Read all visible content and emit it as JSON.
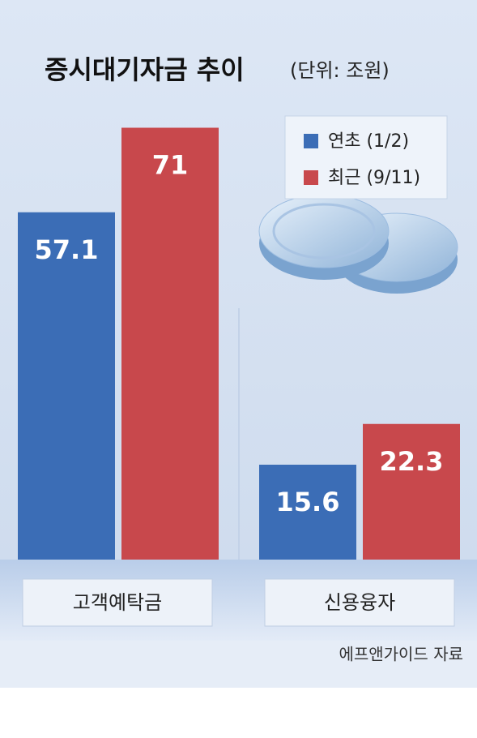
{
  "chart_data": {
    "type": "bar",
    "title": "증시대기자금 추이",
    "subtitle": "(단위: 조원)",
    "categories": [
      "고객예탁금",
      "신용융자"
    ],
    "series": [
      {
        "name": "연초 (1/2)",
        "color": "#3b6db6",
        "values": [
          57.1,
          15.6
        ]
      },
      {
        "name": "최근 (9/11)",
        "color": "#c8484c",
        "values": [
          71,
          22.3
        ]
      }
    ],
    "source": "에프앤가이드 자료"
  }
}
